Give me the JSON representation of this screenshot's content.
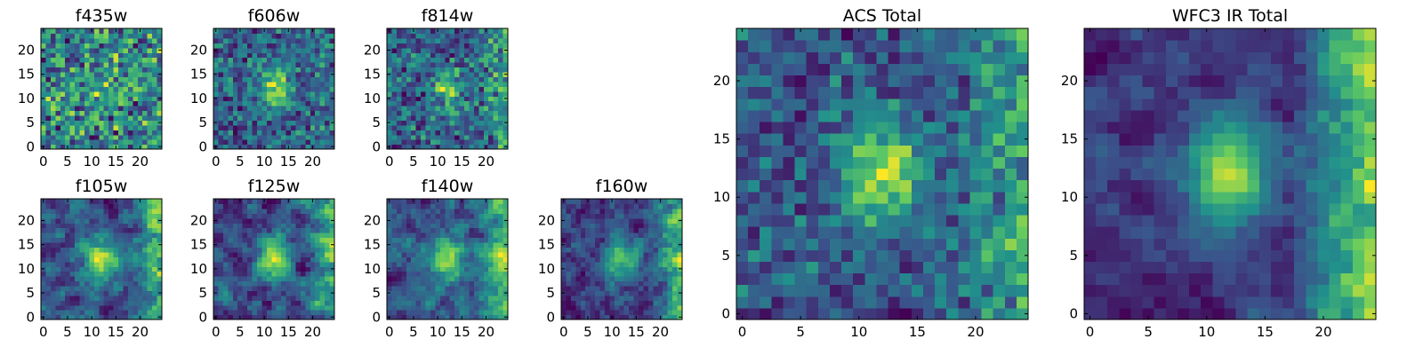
{
  "figure": {
    "colormap": "viridis",
    "colormap_stops": [
      "#440154",
      "#3b528b",
      "#21918c",
      "#5ec962",
      "#fde725"
    ]
  },
  "chart_data": [
    {
      "type": "heatmap",
      "title": "f435w",
      "grid_size": 25,
      "xlim": [
        0,
        24
      ],
      "ylim": [
        0,
        24
      ],
      "x_ticks": [
        0,
        5,
        10,
        15,
        20
      ],
      "y_ticks": [
        0,
        5,
        10,
        15,
        20
      ],
      "signal": 0.08,
      "noise": 0.95,
      "smooth": 0.0,
      "right_glow": 0.0,
      "seed": 11
    },
    {
      "type": "heatmap",
      "title": "f606w",
      "grid_size": 25,
      "xlim": [
        0,
        24
      ],
      "ylim": [
        0,
        24
      ],
      "x_ticks": [
        0,
        5,
        10,
        15,
        20
      ],
      "y_ticks": [
        0,
        5,
        10,
        15,
        20
      ],
      "signal": 0.55,
      "noise": 0.75,
      "smooth": 0.1,
      "right_glow": 0.1,
      "seed": 23
    },
    {
      "type": "heatmap",
      "title": "f814w",
      "grid_size": 25,
      "xlim": [
        0,
        24
      ],
      "ylim": [
        0,
        24
      ],
      "x_ticks": [
        0,
        5,
        10,
        15,
        20
      ],
      "y_ticks": [
        0,
        5,
        10,
        15,
        20
      ],
      "signal": 0.45,
      "noise": 0.75,
      "smooth": 0.1,
      "right_glow": 0.35,
      "seed": 37
    },
    {
      "type": "heatmap",
      "title": "f105w",
      "grid_size": 25,
      "xlim": [
        0,
        24
      ],
      "ylim": [
        0,
        24
      ],
      "x_ticks": [
        0,
        5,
        10,
        15,
        20
      ],
      "y_ticks": [
        0,
        5,
        10,
        15,
        20
      ],
      "signal": 0.7,
      "noise": 0.6,
      "smooth": 0.5,
      "right_glow": 0.55,
      "seed": 41
    },
    {
      "type": "heatmap",
      "title": "f125w",
      "grid_size": 25,
      "xlim": [
        0,
        24
      ],
      "ylim": [
        0,
        24
      ],
      "x_ticks": [
        0,
        5,
        10,
        15,
        20
      ],
      "y_ticks": [
        0,
        5,
        10,
        15,
        20
      ],
      "signal": 0.7,
      "noise": 0.6,
      "smooth": 0.5,
      "right_glow": 0.6,
      "seed": 53
    },
    {
      "type": "heatmap",
      "title": "f140w",
      "grid_size": 25,
      "xlim": [
        0,
        24
      ],
      "ylim": [
        0,
        24
      ],
      "x_ticks": [
        0,
        5,
        10,
        15,
        20
      ],
      "y_ticks": [
        0,
        5,
        10,
        15,
        20
      ],
      "signal": 0.65,
      "noise": 0.6,
      "smooth": 0.5,
      "right_glow": 0.65,
      "seed": 67
    },
    {
      "type": "heatmap",
      "title": "f160w",
      "grid_size": 25,
      "xlim": [
        0,
        24
      ],
      "ylim": [
        0,
        24
      ],
      "x_ticks": [
        0,
        5,
        10,
        15,
        20
      ],
      "y_ticks": [
        0,
        5,
        10,
        15,
        20
      ],
      "signal": 0.75,
      "noise": 0.55,
      "smooth": 0.55,
      "right_glow": 0.75,
      "seed": 79
    },
    {
      "type": "heatmap",
      "title": "ACS Total",
      "grid_size": 25,
      "xlim": [
        0,
        24
      ],
      "ylim": [
        0,
        24
      ],
      "x_ticks": [
        0,
        5,
        10,
        15,
        20
      ],
      "y_ticks": [
        0,
        5,
        10,
        15,
        20
      ],
      "signal": 0.6,
      "noise": 0.55,
      "smooth": 0.05,
      "right_glow": 0.35,
      "seed": 97
    },
    {
      "type": "heatmap",
      "title": "WFC3 IR Total",
      "grid_size": 25,
      "xlim": [
        0,
        24
      ],
      "ylim": [
        0,
        24
      ],
      "x_ticks": [
        0,
        5,
        10,
        15,
        20
      ],
      "y_ticks": [
        0,
        5,
        10,
        15,
        20
      ],
      "signal": 0.8,
      "noise": 0.35,
      "smooth": 0.7,
      "right_glow": 0.85,
      "seed": 113
    }
  ]
}
